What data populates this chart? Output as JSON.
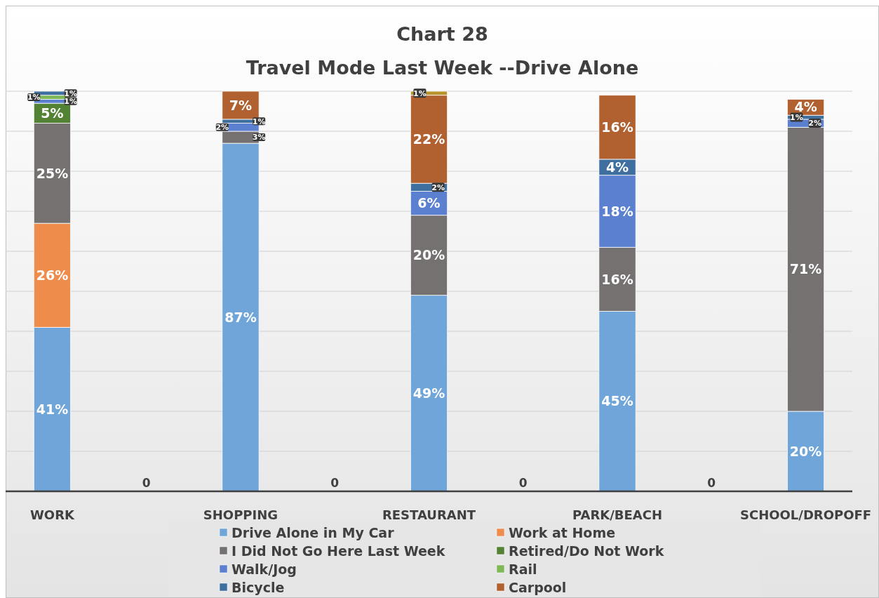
{
  "chart_data": {
    "type": "bar",
    "title": "Chart 28",
    "subtitle": "Travel Mode Last Week --Drive Alone",
    "stacked": true,
    "categories": [
      "WORK",
      null,
      "SHOPPING",
      null,
      "RESTAURANT",
      null,
      "PARK/BEACH",
      null,
      "SCHOOL/DROPOFF"
    ],
    "series": [
      {
        "name": "Drive Alone in My Car",
        "color": "#6fa5d9",
        "values": [
          41,
          0,
          87,
          0,
          49,
          0,
          45,
          0,
          20
        ],
        "value_labels": [
          "41%",
          "0",
          "87%",
          "0",
          "49%",
          "0",
          "45%",
          "0",
          "20%"
        ]
      },
      {
        "name": "Work at Home",
        "color": "#ee8c4b",
        "values": [
          26,
          null,
          null,
          null,
          null,
          null,
          null,
          null,
          null
        ],
        "value_labels": [
          "26%",
          null,
          null,
          null,
          null,
          null,
          null,
          null,
          null
        ]
      },
      {
        "name": "I Did Not Go Here Last Week",
        "color": "#767171",
        "values": [
          25,
          null,
          3,
          null,
          20,
          null,
          16,
          null,
          71
        ],
        "value_labels": [
          "25%",
          null,
          "3%",
          null,
          "20%",
          null,
          "16%",
          null,
          "71%"
        ]
      },
      {
        "name": "Retired/Do Not Work",
        "color": "#548235",
        "values": [
          5,
          null,
          null,
          null,
          null,
          null,
          null,
          null,
          null
        ],
        "value_labels": [
          "5%",
          null,
          null,
          null,
          null,
          null,
          null,
          null,
          null
        ]
      },
      {
        "name": "Walk/Jog",
        "color": "#5b80d0",
        "values": [
          1,
          null,
          2,
          null,
          6,
          null,
          18,
          null,
          2
        ],
        "value_labels": [
          "1%",
          null,
          "2%",
          null,
          "6%",
          null,
          "18%",
          null,
          "2%"
        ]
      },
      {
        "name": "Rail",
        "color": "#7fb857",
        "values": [
          1,
          null,
          null,
          null,
          null,
          null,
          null,
          null,
          null
        ],
        "value_labels": [
          "1%",
          null,
          null,
          null,
          null,
          null,
          null,
          null,
          null
        ]
      },
      {
        "name": "Bicycle",
        "color": "#3f6f9f",
        "values": [
          1,
          null,
          1,
          null,
          2,
          null,
          4,
          null,
          1
        ],
        "value_labels": [
          "1%",
          null,
          "1%",
          null,
          "2%",
          null,
          "4%",
          null,
          "1%"
        ]
      },
      {
        "name": "Carpool",
        "color": "#b1602f",
        "values": [
          null,
          null,
          7,
          null,
          22,
          null,
          16,
          null,
          4
        ],
        "value_labels": [
          null,
          null,
          "7%",
          null,
          "22%",
          null,
          "16%",
          null,
          "4%"
        ]
      },
      {
        "color": "#b8952c",
        "values": [
          null,
          null,
          null,
          null,
          1,
          null,
          null,
          null,
          null
        ],
        "value_labels": [
          null,
          null,
          null,
          null,
          "1%",
          null,
          null,
          null,
          null
        ]
      }
    ],
    "ylim": [
      0,
      100
    ],
    "yticks": [
      {
        "value": 0,
        "label": null
      },
      {
        "value": 10,
        "label": null
      },
      {
        "value": 20,
        "label": null
      },
      {
        "value": 30,
        "label": null
      },
      {
        "value": 40,
        "label": null
      },
      {
        "value": 50,
        "label": null
      },
      {
        "value": 60,
        "label": null
      },
      {
        "value": 70,
        "label": null
      },
      {
        "value": 80,
        "label": null
      },
      {
        "value": 90,
        "label": null
      },
      {
        "value": 100,
        "label": null
      }
    ],
    "tick_labels": "x",
    "grid": "y",
    "legend": "bottom"
  }
}
